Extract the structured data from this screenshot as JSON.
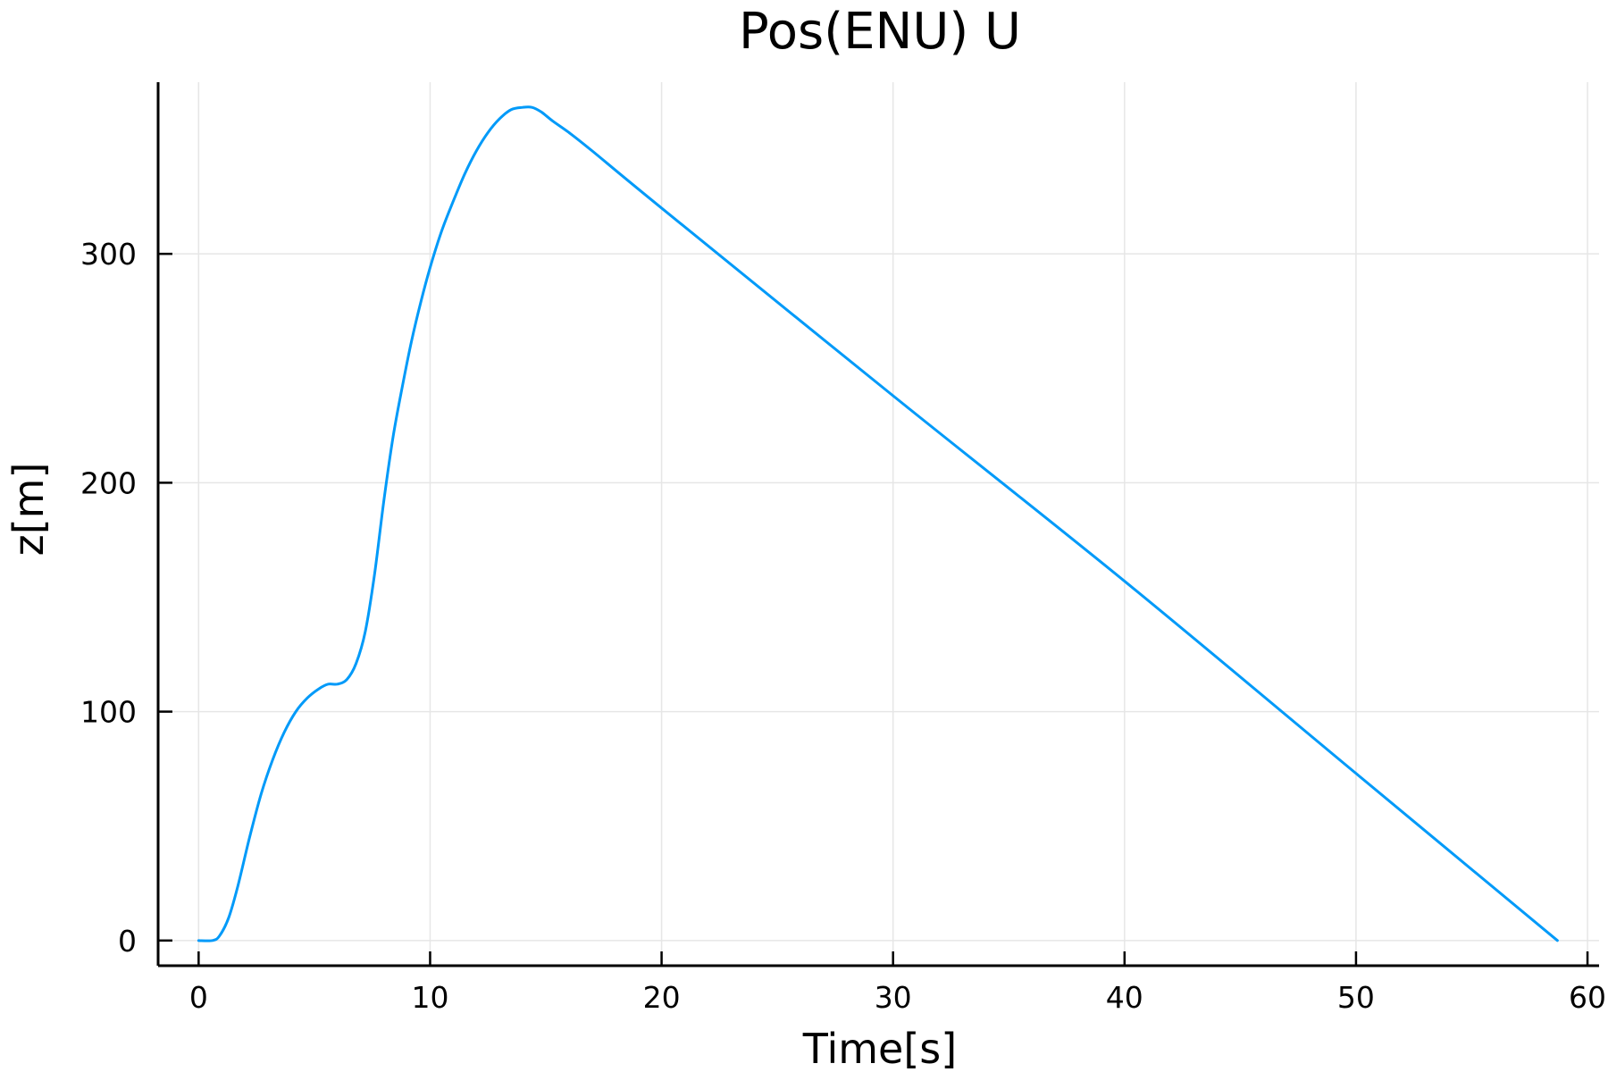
{
  "chart_data": {
    "type": "line",
    "title": "Pos(ENU) U",
    "xlabel": "Time[s]",
    "ylabel": "z[m]",
    "xlim": [
      -1.75,
      60.5
    ],
    "ylim": [
      -11,
      375
    ],
    "xticks": [
      0,
      10,
      20,
      30,
      40,
      50,
      60
    ],
    "xtick_labels": [
      "0",
      "10",
      "20",
      "30",
      "40",
      "50",
      "60"
    ],
    "yticks": [
      0,
      100,
      200,
      300
    ],
    "ytick_labels": [
      "0",
      "100",
      "200",
      "300"
    ],
    "grid": true,
    "legend": "none",
    "series": [
      {
        "name": "z",
        "color": "#009af9",
        "x": [
          0,
          0.6,
          0.9,
          1.3,
          1.7,
          2.2,
          2.7,
          3.2,
          3.7,
          4.2,
          4.7,
          5.2,
          5.6,
          6.0,
          6.4,
          6.8,
          7.2,
          7.6,
          8.0,
          8.4,
          8.8,
          9.2,
          9.6,
          10.0,
          10.5,
          11.0,
          11.5,
          12.0,
          12.5,
          13.0,
          13.5,
          14.0,
          14.4,
          14.8,
          15.3,
          16.0,
          17.0,
          20.0,
          30.0,
          40.0,
          50.0,
          58.7
        ],
        "y": [
          0,
          0,
          2,
          10,
          24,
          45,
          64,
          79,
          91,
          100,
          106,
          110,
          112,
          112,
          114,
          121,
          135,
          160,
          192,
          220,
          242,
          262,
          279,
          294,
          310,
          323,
          335,
          345,
          353,
          359,
          363,
          364,
          364,
          362,
          358,
          353,
          345,
          320,
          238,
          157,
          73,
          0
        ]
      }
    ]
  }
}
